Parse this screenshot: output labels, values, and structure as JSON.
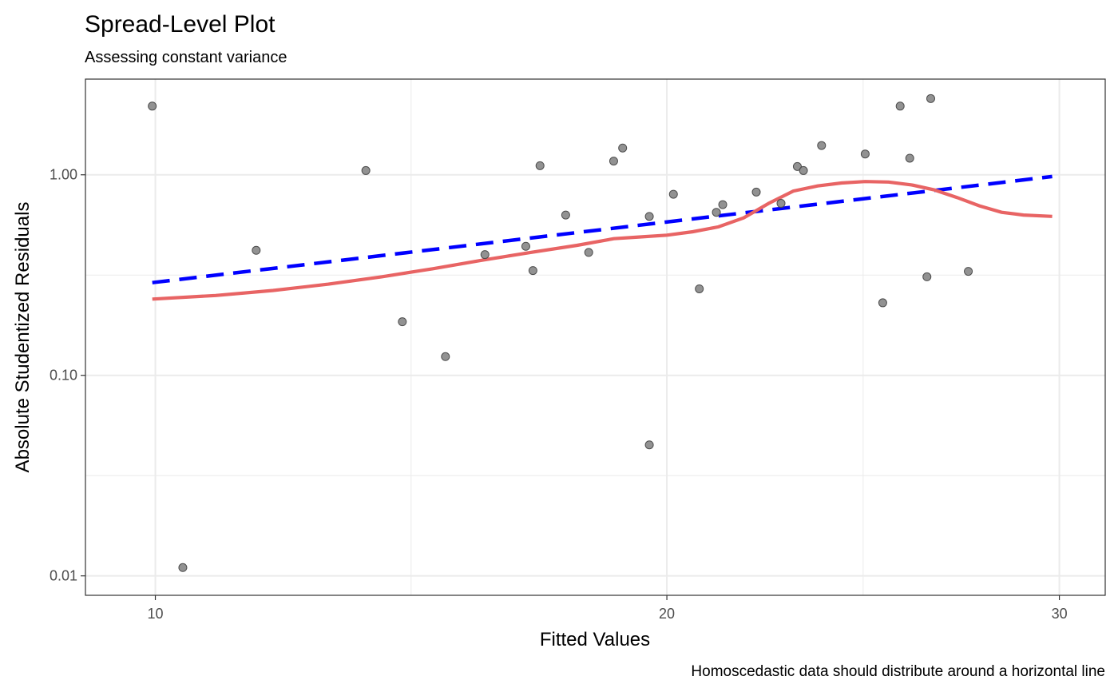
{
  "chart_data": {
    "type": "scatter",
    "title": "Spread-Level Plot",
    "subtitle": "Assessing constant variance",
    "xlabel": "Fitted Values",
    "ylabel": "Absolute Studentized Residuals",
    "caption": "Homoscedastic data should distribute around a horizontal line",
    "x_scale": "sqrt",
    "y_scale": "log10",
    "xlim": [
      8.9,
      31.3
    ],
    "ylim": [
      0.008,
      3.0
    ],
    "x_ticks": [
      10,
      20,
      30
    ],
    "x_tick_labels": [
      "10",
      "20",
      "30"
    ],
    "y_ticks": [
      0.01,
      0.1,
      1
    ],
    "y_tick_labels": [
      "0.01",
      "0.10",
      "1.00"
    ],
    "grid": true,
    "points": [
      {
        "x": 9.95,
        "y": 2.2
      },
      {
        "x": 10.45,
        "y": 0.011
      },
      {
        "x": 11.7,
        "y": 0.42
      },
      {
        "x": 13.7,
        "y": 1.05
      },
      {
        "x": 14.4,
        "y": 0.185
      },
      {
        "x": 15.25,
        "y": 0.124
      },
      {
        "x": 16.05,
        "y": 0.4
      },
      {
        "x": 16.9,
        "y": 0.44
      },
      {
        "x": 17.05,
        "y": 0.333
      },
      {
        "x": 17.2,
        "y": 1.11
      },
      {
        "x": 17.75,
        "y": 0.63
      },
      {
        "x": 18.25,
        "y": 0.41
      },
      {
        "x": 18.8,
        "y": 1.17
      },
      {
        "x": 19.0,
        "y": 1.36
      },
      {
        "x": 19.6,
        "y": 0.62
      },
      {
        "x": 19.6,
        "y": 0.045
      },
      {
        "x": 20.15,
        "y": 0.8
      },
      {
        "x": 20.75,
        "y": 0.27
      },
      {
        "x": 21.15,
        "y": 0.65
      },
      {
        "x": 21.3,
        "y": 0.71
      },
      {
        "x": 22.1,
        "y": 0.82
      },
      {
        "x": 22.7,
        "y": 0.72
      },
      {
        "x": 23.1,
        "y": 1.1
      },
      {
        "x": 23.25,
        "y": 1.05
      },
      {
        "x": 23.7,
        "y": 1.4
      },
      {
        "x": 24.8,
        "y": 1.27
      },
      {
        "x": 25.25,
        "y": 0.23
      },
      {
        "x": 25.7,
        "y": 2.2
      },
      {
        "x": 25.95,
        "y": 1.21
      },
      {
        "x": 26.4,
        "y": 0.31
      },
      {
        "x": 26.5,
        "y": 2.4
      },
      {
        "x": 27.5,
        "y": 0.33
      }
    ],
    "series": [
      {
        "style": "dashed",
        "color": "#0000ff",
        "points": [
          {
            "x": 9.95,
            "y": 0.29
          },
          {
            "x": 29.8,
            "y": 0.98
          }
        ]
      },
      {
        "style": "solid",
        "color": "#e86464",
        "points": [
          {
            "x": 9.95,
            "y": 0.24
          },
          {
            "x": 11.0,
            "y": 0.25
          },
          {
            "x": 12.0,
            "y": 0.265
          },
          {
            "x": 13.0,
            "y": 0.285
          },
          {
            "x": 14.0,
            "y": 0.31
          },
          {
            "x": 15.0,
            "y": 0.34
          },
          {
            "x": 16.0,
            "y": 0.375
          },
          {
            "x": 17.0,
            "y": 0.41
          },
          {
            "x": 18.0,
            "y": 0.445
          },
          {
            "x": 18.8,
            "y": 0.48
          },
          {
            "x": 19.4,
            "y": 0.49
          },
          {
            "x": 20.0,
            "y": 0.5
          },
          {
            "x": 20.6,
            "y": 0.52
          },
          {
            "x": 21.2,
            "y": 0.55
          },
          {
            "x": 21.8,
            "y": 0.61
          },
          {
            "x": 22.4,
            "y": 0.72
          },
          {
            "x": 23.0,
            "y": 0.83
          },
          {
            "x": 23.6,
            "y": 0.88
          },
          {
            "x": 24.2,
            "y": 0.91
          },
          {
            "x": 24.8,
            "y": 0.925
          },
          {
            "x": 25.4,
            "y": 0.92
          },
          {
            "x": 26.0,
            "y": 0.89
          },
          {
            "x": 26.6,
            "y": 0.84
          },
          {
            "x": 27.2,
            "y": 0.77
          },
          {
            "x": 27.8,
            "y": 0.7
          },
          {
            "x": 28.4,
            "y": 0.65
          },
          {
            "x": 29.0,
            "y": 0.63
          },
          {
            "x": 29.8,
            "y": 0.62
          }
        ]
      }
    ],
    "colors": {
      "point": "#7f7f7f",
      "grid": "#ebebeb",
      "panel_border": "#333333"
    }
  }
}
